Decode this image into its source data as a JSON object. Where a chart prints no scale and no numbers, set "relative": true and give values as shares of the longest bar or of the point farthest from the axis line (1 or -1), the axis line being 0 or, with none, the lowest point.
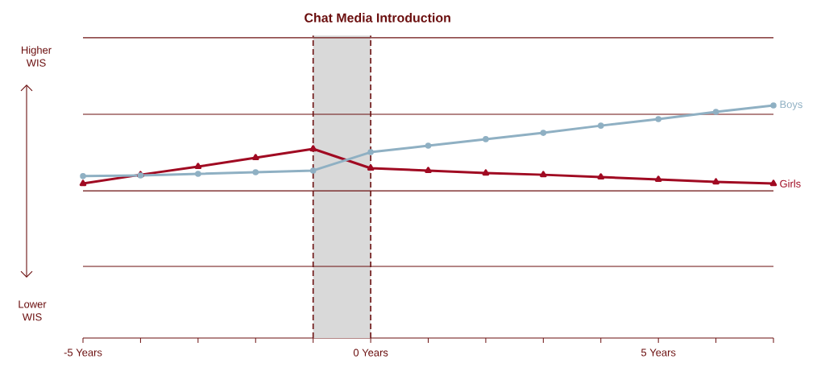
{
  "chart_data": {
    "type": "line",
    "relative": true,
    "x": [
      -5,
      -4,
      -3,
      -2,
      -1,
      0,
      1,
      2,
      3,
      4,
      5,
      6,
      7
    ],
    "xlim": [
      -5,
      7
    ],
    "xticks": [
      {
        "value": -5,
        "label": "-5 Years"
      },
      {
        "value": -4,
        "label": null
      },
      {
        "value": -3,
        "label": null
      },
      {
        "value": -2,
        "label": null
      },
      {
        "value": -1,
        "label": null
      },
      {
        "value": 0,
        "label": "0 Years"
      },
      {
        "value": 1,
        "label": null
      },
      {
        "value": 2,
        "label": null
      },
      {
        "value": 3,
        "label": null
      },
      {
        "value": 4,
        "label": null
      },
      {
        "value": 5,
        "label": "5 Years"
      },
      {
        "value": 6,
        "label": null
      },
      {
        "value": 7,
        "label": null
      }
    ],
    "line_style": "solid",
    "ref_lines": [
      {
        "axis": "y",
        "value": 0.308
      },
      {
        "axis": "y",
        "value": 0.633
      },
      {
        "axis": "y",
        "value": 0.962
      },
      {
        "axis": "y",
        "value": 1.291
      },
      {
        "axis": "x",
        "value": -1,
        "line_style": "dashed"
      },
      {
        "axis": "x",
        "value": 0,
        "line_style": "dashed"
      }
    ],
    "bands": [
      {
        "axis": "x",
        "from": -1,
        "to": 0,
        "label": "Chat Media Introduction",
        "color": "#d9d9d9"
      }
    ],
    "annotations": [
      "Higher WIS",
      "Lower WIS"
    ],
    "series": [
      {
        "name": "Boys",
        "color": "#8fb0c3",
        "marker": "circle",
        "values": [
          0.696,
          0.699,
          0.706,
          0.713,
          0.72,
          0.799,
          0.827,
          0.855,
          0.882,
          0.913,
          0.941,
          0.972,
          1
        ]
      },
      {
        "name": "Girls",
        "color": "#a00a22",
        "marker": "triangle",
        "values": [
          0.664,
          0.702,
          0.737,
          0.775,
          0.813,
          0.73,
          0.72,
          0.709,
          0.702,
          0.692,
          0.682,
          0.671,
          0.664
        ]
      }
    ]
  }
}
